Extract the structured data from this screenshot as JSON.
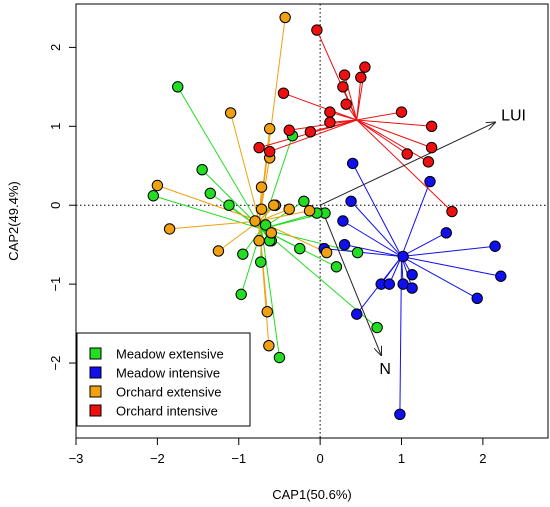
{
  "chart_data": {
    "type": "scatter",
    "subtype": "ordination-spider-plot",
    "xlabel": "CAP1(50.6%)",
    "ylabel": "CAP2(49.4%)",
    "xlim": [
      -3,
      2.8
    ],
    "ylim": [
      -2.95,
      2.55
    ],
    "xticks": [
      -3,
      -2,
      -1,
      0,
      1,
      2
    ],
    "yticks": [
      -2,
      -1,
      0,
      1,
      2
    ],
    "grid": false,
    "zero_lines": "dotted",
    "legend_position": "bottom-left",
    "series": [
      {
        "name": "Meadow extensive",
        "color": "#22dd22",
        "centroid": [
          -0.72,
          -0.3
        ],
        "points": [
          [
            -1.75,
            1.5
          ],
          [
            -0.34,
            0.88
          ],
          [
            -1.45,
            0.45
          ],
          [
            -1.35,
            0.15
          ],
          [
            -1.12,
            0.0
          ],
          [
            -2.05,
            0.12
          ],
          [
            -0.6,
            -0.45
          ],
          [
            -0.62,
            -0.45
          ],
          [
            -0.73,
            -0.72
          ],
          [
            -0.95,
            -0.62
          ],
          [
            -0.97,
            -1.13
          ],
          [
            -0.25,
            -0.55
          ],
          [
            -0.2,
            0.05
          ],
          [
            0.06,
            -0.1
          ],
          [
            0.2,
            -0.78
          ],
          [
            0.46,
            -0.6
          ],
          [
            0.7,
            -1.55
          ],
          [
            -0.5,
            -1.93
          ],
          [
            -0.67,
            -0.25
          ],
          [
            -0.04,
            -0.1
          ]
        ]
      },
      {
        "name": "Meadow intensive",
        "color": "#1010ee",
        "centroid": [
          1.0,
          -0.65
        ],
        "points": [
          [
            0.4,
            0.53
          ],
          [
            1.35,
            0.3
          ],
          [
            0.38,
            0.05
          ],
          [
            0.28,
            -0.2
          ],
          [
            0.05,
            -0.55
          ],
          [
            0.3,
            -0.5
          ],
          [
            0.45,
            -1.38
          ],
          [
            0.75,
            -1.0
          ],
          [
            0.85,
            -1.0
          ],
          [
            1.02,
            -0.65
          ],
          [
            1.02,
            -1.0
          ],
          [
            1.13,
            -0.88
          ],
          [
            1.13,
            -1.05
          ],
          [
            1.55,
            -0.35
          ],
          [
            2.15,
            -0.52
          ],
          [
            2.22,
            -0.9
          ],
          [
            1.93,
            -1.18
          ],
          [
            0.98,
            -2.65
          ]
        ]
      },
      {
        "name": "Orchard extensive",
        "color": "#f0a010",
        "centroid": [
          -0.75,
          -0.2
        ],
        "points": [
          [
            -0.43,
            2.38
          ],
          [
            -1.1,
            1.17
          ],
          [
            -0.62,
            0.97
          ],
          [
            -0.62,
            0.6
          ],
          [
            -0.72,
            0.23
          ],
          [
            -2.0,
            0.25
          ],
          [
            -1.85,
            -0.3
          ],
          [
            -1.25,
            -0.58
          ],
          [
            -0.8,
            -0.2
          ],
          [
            -0.75,
            -0.45
          ],
          [
            -0.6,
            -0.35
          ],
          [
            -0.72,
            -0.05
          ],
          [
            -0.55,
            0.0
          ],
          [
            -0.38,
            -0.05
          ],
          [
            -0.13,
            -0.07
          ],
          [
            -0.65,
            -1.35
          ],
          [
            -0.63,
            -1.78
          ],
          [
            0.08,
            -0.6
          ],
          [
            -0.57,
            0.0
          ]
        ]
      },
      {
        "name": "Orchard intensive",
        "color": "#ee1010",
        "centroid": [
          0.45,
          1.08
        ],
        "points": [
          [
            -0.04,
            2.22
          ],
          [
            0.3,
            1.65
          ],
          [
            0.5,
            1.62
          ],
          [
            0.55,
            1.75
          ],
          [
            0.28,
            1.5
          ],
          [
            0.32,
            1.28
          ],
          [
            -0.45,
            1.42
          ],
          [
            0.12,
            1.18
          ],
          [
            0.12,
            1.05
          ],
          [
            -0.38,
            0.95
          ],
          [
            -0.12,
            0.93
          ],
          [
            -0.75,
            0.73
          ],
          [
            -0.62,
            0.68
          ],
          [
            1.0,
            1.18
          ],
          [
            1.37,
            1.0
          ],
          [
            1.37,
            0.73
          ],
          [
            1.07,
            0.65
          ],
          [
            1.33,
            0.55
          ],
          [
            1.62,
            -0.08
          ]
        ]
      }
    ],
    "vectors": [
      {
        "label": "LUI",
        "end": [
          2.15,
          1.05
        ]
      },
      {
        "label": "N",
        "end": [
          0.75,
          -1.9
        ]
      }
    ]
  }
}
